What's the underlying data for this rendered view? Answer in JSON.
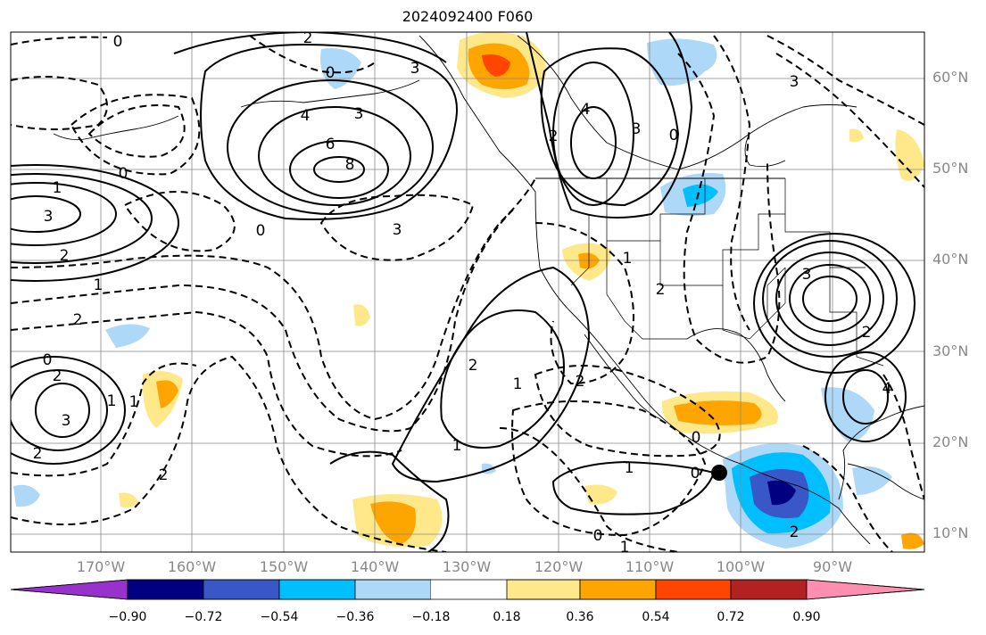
{
  "title": "2024092400 F060",
  "lat_labels": [
    "60°N",
    "50°N",
    "40°N",
    "30°N",
    "20°N",
    "10°N"
  ],
  "lon_labels": [
    "170°W",
    "160°W",
    "150°W",
    "140°W",
    "130°W",
    "120°W",
    "110°W",
    "100°W",
    "90°W"
  ],
  "contour_labels": [
    "0",
    "2",
    "3",
    "4",
    "6",
    "8",
    "3",
    "0",
    "1",
    "3",
    "2",
    "2",
    "1",
    "0",
    "3",
    "2",
    "1",
    "0",
    "2",
    "1",
    "2",
    "1",
    "2",
    "3",
    "4",
    "3",
    "0",
    "0",
    "2",
    "1",
    "0",
    "2",
    "3",
    "2",
    "1",
    "4",
    "3",
    "2",
    "1",
    "0",
    "1",
    "2"
  ],
  "colorbar": {
    "ticks": [
      "−0.90",
      "−0.72",
      "−0.54",
      "−0.36",
      "−0.18",
      "0.18",
      "0.36",
      "0.54",
      "0.72",
      "0.90"
    ],
    "colors": [
      "#9932cc",
      "#000080",
      "#3a57c8",
      "#00bfff",
      "#add8f7",
      "#ffffff",
      "#ffe88a",
      "#ffa500",
      "#ff4500",
      "#b22222",
      "#ff8fb0"
    ]
  },
  "marker": {
    "label": "0"
  }
}
